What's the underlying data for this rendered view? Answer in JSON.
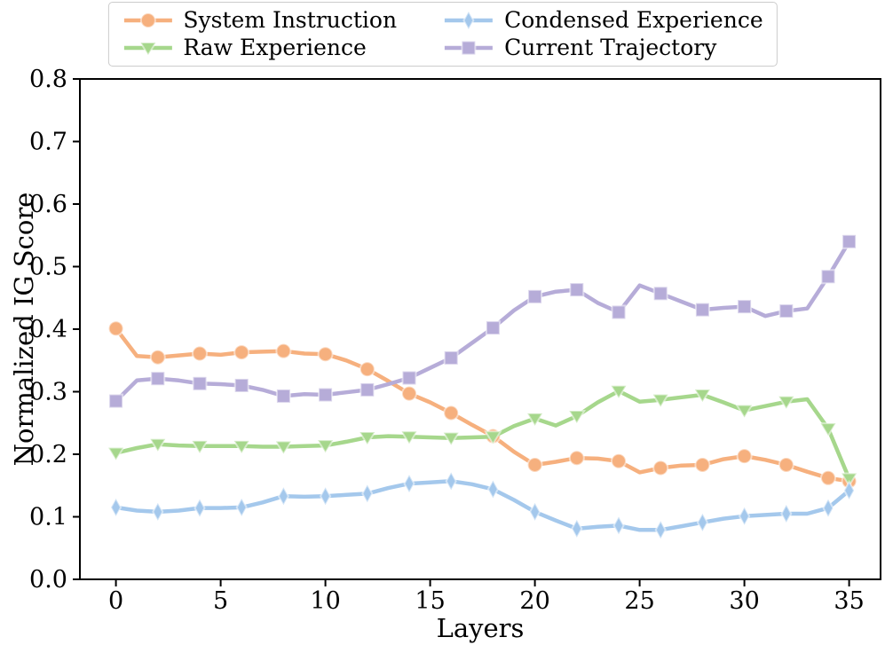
{
  "figure": {
    "background": "#ffffff",
    "spine_color": "#000000",
    "legend_border_color": "#cccccc"
  },
  "chart_data": {
    "type": "line",
    "title": "",
    "xlabel": "Layers",
    "ylabel": "Normalized IG Score",
    "xlim": [
      -1.72,
      36.5
    ],
    "ylim": [
      0.0,
      0.8
    ],
    "xticks": [
      0,
      5,
      10,
      15,
      20,
      25,
      30,
      35
    ],
    "xtick_labels": [
      "0",
      "5",
      "10",
      "15",
      "20",
      "25",
      "30",
      "35"
    ],
    "yticks": [
      0.0,
      0.1,
      0.2,
      0.3,
      0.4,
      0.5,
      0.6,
      0.7,
      0.8
    ],
    "ytick_labels": [
      "0.0",
      "0.1",
      "0.2",
      "0.3",
      "0.4",
      "0.5",
      "0.6",
      "0.7",
      "0.8"
    ],
    "grid": false,
    "legend_position": "top-center",
    "legend_columns": 2,
    "marker_every": 2,
    "marker_on_last_point": true,
    "x": [
      0,
      1,
      2,
      3,
      4,
      5,
      6,
      7,
      8,
      9,
      10,
      11,
      12,
      13,
      14,
      15,
      16,
      17,
      18,
      19,
      20,
      21,
      22,
      23,
      24,
      25,
      26,
      27,
      28,
      29,
      30,
      31,
      32,
      33,
      34,
      35
    ],
    "series": [
      {
        "name": "System Instruction",
        "color": "#F6B07E",
        "marker": "circle",
        "values": [
          0.401,
          0.357,
          0.355,
          0.358,
          0.361,
          0.359,
          0.363,
          0.364,
          0.365,
          0.361,
          0.36,
          0.35,
          0.336,
          0.317,
          0.297,
          0.283,
          0.266,
          0.247,
          0.229,
          0.204,
          0.183,
          0.188,
          0.194,
          0.193,
          0.189,
          0.171,
          0.178,
          0.182,
          0.183,
          0.192,
          0.197,
          0.191,
          0.183,
          0.172,
          0.162,
          0.157
        ]
      },
      {
        "name": "Raw Experience",
        "color": "#A6D78C",
        "marker": "triangle-down",
        "values": [
          0.202,
          0.21,
          0.216,
          0.214,
          0.213,
          0.213,
          0.213,
          0.212,
          0.212,
          0.213,
          0.214,
          0.22,
          0.227,
          0.229,
          0.228,
          0.227,
          0.226,
          0.227,
          0.228,
          0.245,
          0.257,
          0.246,
          0.261,
          0.283,
          0.301,
          0.284,
          0.287,
          0.291,
          0.295,
          0.283,
          0.27,
          0.277,
          0.284,
          0.288,
          0.241,
          0.161
        ]
      },
      {
        "name": "Condensed Experience",
        "color": "#A4C8EC",
        "marker": "thin-diamond",
        "values": [
          0.115,
          0.11,
          0.108,
          0.11,
          0.114,
          0.114,
          0.115,
          0.123,
          0.133,
          0.132,
          0.133,
          0.135,
          0.137,
          0.146,
          0.153,
          0.155,
          0.157,
          0.152,
          0.144,
          0.127,
          0.108,
          0.094,
          0.081,
          0.084,
          0.086,
          0.079,
          0.079,
          0.085,
          0.091,
          0.097,
          0.101,
          0.103,
          0.105,
          0.105,
          0.114,
          0.142
        ]
      },
      {
        "name": "Current Trajectory",
        "color": "#B6ACD8",
        "marker": "square",
        "values": [
          0.285,
          0.318,
          0.321,
          0.318,
          0.313,
          0.312,
          0.31,
          0.303,
          0.293,
          0.296,
          0.295,
          0.299,
          0.303,
          0.312,
          0.322,
          0.338,
          0.354,
          0.378,
          0.402,
          0.43,
          0.452,
          0.46,
          0.463,
          0.442,
          0.427,
          0.47,
          0.457,
          0.444,
          0.431,
          0.434,
          0.436,
          0.421,
          0.429,
          0.433,
          0.484,
          0.54
        ]
      }
    ]
  }
}
